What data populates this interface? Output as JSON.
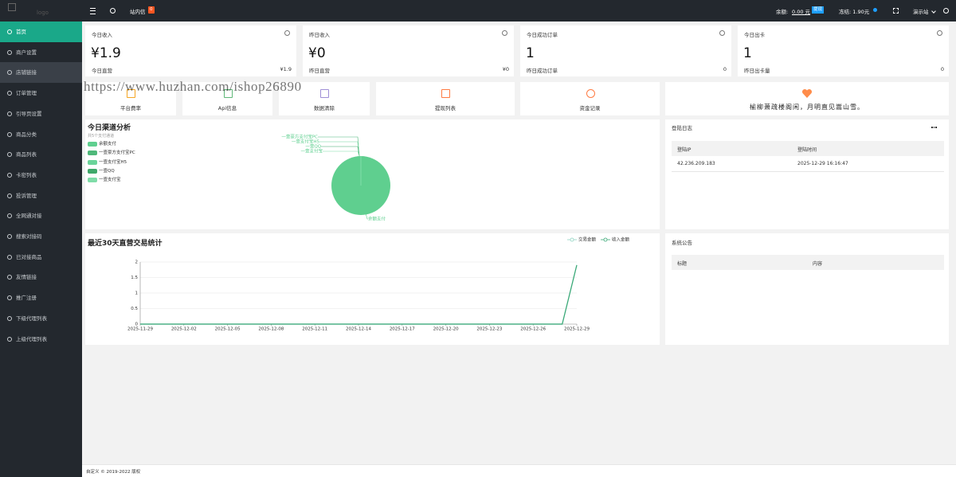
{
  "logo": "logo",
  "topbar": {
    "messages": "站内信",
    "message_count": "0",
    "balance_label": "余额:",
    "balance": "0.00 元",
    "withdraw": "提现",
    "frozen": "冻结: 1.90元",
    "site": "演示站"
  },
  "sidebar": [
    "首页",
    "商户设置",
    "店铺链接",
    "订单管理",
    "引导页设置",
    "商品分类",
    "商品列表",
    "卡密列表",
    "投诉管理",
    "全网通对接",
    "搜索对接码",
    "已对接商品",
    "友情链接",
    "推广注册",
    "下级代理列表",
    "上级代理列表"
  ],
  "watermark": "https://www.huzhan.com/ishop26890",
  "stats": [
    {
      "title": "今日收入",
      "value": "¥1.9",
      "sub_label": "今日直营",
      "sub_value": "¥1.9"
    },
    {
      "title": "昨日收入",
      "value": "¥0",
      "sub_label": "昨日直营",
      "sub_value": "¥0"
    },
    {
      "title": "今日成功订单",
      "value": "1",
      "sub_label": "昨日成功订单",
      "sub_value": "0"
    },
    {
      "title": "今日出卡",
      "value": "1",
      "sub_label": "昨日出卡量",
      "sub_value": "0"
    }
  ],
  "shortcuts": [
    "平台费率",
    "Api信息",
    "数据清除",
    "提现列表",
    "资金记录"
  ],
  "quote": "榆柳萧疏楼阁闲，月明直见嵩山雪。",
  "channel_chart": {
    "type": "pie",
    "title": "今日渠道分析",
    "subtitle": "共5个支付通道",
    "categories": [
      "余额支付",
      "一壹豪方支付宝PC",
      "一壹支付宝H5",
      "一壹QQ",
      "一壹支付宝"
    ],
    "values": [
      1.9,
      0,
      0,
      0,
      0
    ],
    "colors": [
      "#5fcf8f",
      "#4fb87a",
      "#6bd49a",
      "#3fa86a",
      "#7fdca8"
    ]
  },
  "login_log": {
    "title": "登陆日志",
    "columns": [
      "登陆IP",
      "登陆时间"
    ],
    "rows": [
      [
        "42.236.209.183",
        "2025-12-29 16:16:47"
      ]
    ]
  },
  "trade_chart": {
    "type": "line",
    "title": "最近30天直营交易统计",
    "categories": [
      "2025-11-29",
      null,
      null,
      "2025-12-02",
      null,
      null,
      "2025-12-05",
      null,
      null,
      "2025-12-08",
      null,
      null,
      "2025-12-11",
      null,
      null,
      "2025-12-14",
      null,
      null,
      "2025-12-17",
      null,
      null,
      "2025-12-20",
      null,
      null,
      "2025-12-23",
      null,
      null,
      "2025-12-26",
      null,
      null,
      "2025-12-29"
    ],
    "series": [
      {
        "name": "交易金额",
        "color": "#8fd3c1",
        "values": [
          0,
          0,
          0,
          0,
          0,
          0,
          0,
          0,
          0,
          0,
          0,
          0,
          0,
          0,
          0,
          0,
          0,
          0,
          0,
          0,
          0,
          0,
          0,
          0,
          0,
          0,
          0,
          0,
          0,
          0,
          1.9
        ]
      },
      {
        "name": "收入金额",
        "color": "#3aa876",
        "values": [
          0,
          0,
          0,
          0,
          0,
          0,
          0,
          0,
          0,
          0,
          0,
          0,
          0,
          0,
          0,
          0,
          0,
          0,
          0,
          0,
          0,
          0,
          0,
          0,
          0,
          0,
          0,
          0,
          0,
          0,
          1.9
        ]
      }
    ],
    "ylim": [
      0,
      2
    ],
    "yticks": [
      0,
      0.5,
      1,
      1.5,
      2
    ],
    "grid": true
  },
  "notice": {
    "title": "系统公告",
    "columns": [
      "标题",
      "内容"
    ]
  },
  "footer": "自定义 © 2019-2022 版权"
}
